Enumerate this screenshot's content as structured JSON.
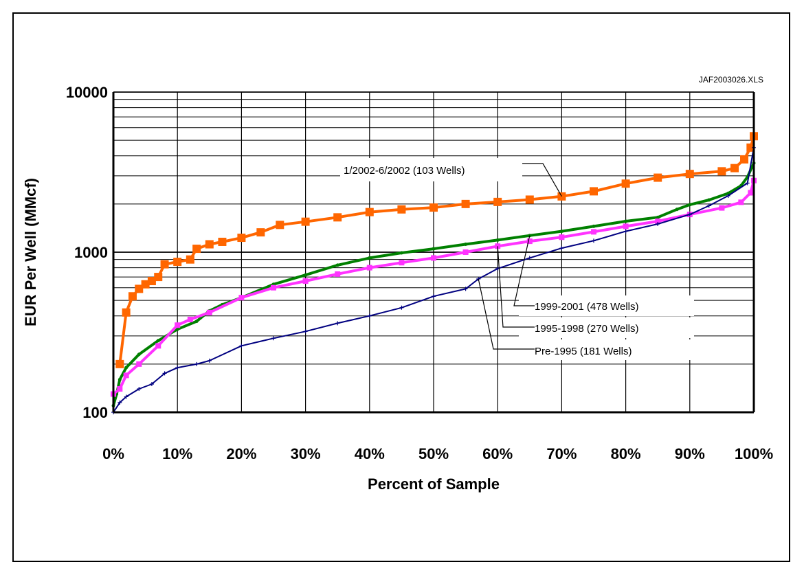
{
  "chart_data": {
    "type": "line",
    "file_tag": "JAF2003026.XLS",
    "xlabel": "Percent of Sample",
    "ylabel": "EUR Per Well (MMcf)",
    "xlim": [
      0,
      100
    ],
    "ylim": [
      100,
      10000
    ],
    "y_scale": "log",
    "grid": true,
    "x_ticks": [
      "0%",
      "10%",
      "20%",
      "30%",
      "40%",
      "50%",
      "60%",
      "70%",
      "80%",
      "90%",
      "100%"
    ],
    "y_ticks": [
      "100",
      "1000",
      "10000"
    ],
    "series": [
      {
        "name": "1/2002-6/2002 (103 Wells)",
        "color": "#ff6600",
        "marker": "square",
        "x": [
          1,
          2,
          3,
          4,
          5,
          6,
          7,
          8,
          10,
          12,
          13,
          15,
          17,
          20,
          23,
          26,
          30,
          35,
          40,
          45,
          50,
          55,
          60,
          65,
          70,
          75,
          80,
          85,
          90,
          95,
          97,
          98.5,
          99.5,
          100
        ],
        "y": [
          200,
          420,
          530,
          590,
          630,
          660,
          700,
          840,
          870,
          900,
          1050,
          1120,
          1160,
          1230,
          1330,
          1480,
          1550,
          1650,
          1780,
          1850,
          1900,
          2000,
          2060,
          2130,
          2230,
          2400,
          2680,
          2920,
          3080,
          3200,
          3350,
          3800,
          4500,
          5300
        ]
      },
      {
        "name": "1999-2001 (478 Wells)",
        "color": "#008000",
        "marker": "line",
        "x": [
          0,
          0.5,
          1,
          2,
          4,
          7,
          10,
          13,
          15,
          17,
          20,
          25,
          30,
          35,
          40,
          45,
          50,
          55,
          60,
          65,
          70,
          75,
          80,
          85,
          88,
          90,
          93,
          96,
          98,
          99,
          100
        ],
        "y": [
          110,
          130,
          160,
          190,
          230,
          280,
          330,
          370,
          430,
          470,
          520,
          630,
          720,
          830,
          920,
          990,
          1050,
          1120,
          1190,
          1270,
          1350,
          1450,
          1560,
          1650,
          1850,
          1980,
          2120,
          2330,
          2600,
          2950,
          3600
        ]
      },
      {
        "name": "1995-1998 (270 Wells)",
        "color": "#ff33ff",
        "marker": "square",
        "x": [
          0,
          1,
          2,
          4,
          7,
          10,
          12,
          15,
          20,
          25,
          30,
          35,
          40,
          45,
          50,
          55,
          60,
          65,
          70,
          75,
          80,
          85,
          90,
          95,
          98,
          99.5,
          100
        ],
        "y": [
          130,
          140,
          170,
          200,
          260,
          350,
          380,
          420,
          520,
          600,
          660,
          730,
          800,
          860,
          920,
          1000,
          1090,
          1170,
          1240,
          1340,
          1450,
          1560,
          1720,
          1890,
          2050,
          2350,
          2800
        ]
      },
      {
        "name": "Pre-1995 (181 Wells)",
        "color": "#000080",
        "marker": "plus",
        "x": [
          0,
          1,
          2,
          4,
          6,
          8,
          10,
          13,
          15,
          20,
          25,
          30,
          35,
          40,
          45,
          50,
          55,
          57,
          60,
          65,
          70,
          75,
          80,
          85,
          90,
          93,
          96,
          99,
          100
        ],
        "y": [
          100,
          115,
          125,
          140,
          150,
          175,
          190,
          200,
          210,
          260,
          290,
          320,
          360,
          400,
          450,
          530,
          590,
          680,
          790,
          920,
          1060,
          1180,
          1350,
          1500,
          1720,
          1950,
          2250,
          2700,
          4500
        ]
      }
    ]
  }
}
